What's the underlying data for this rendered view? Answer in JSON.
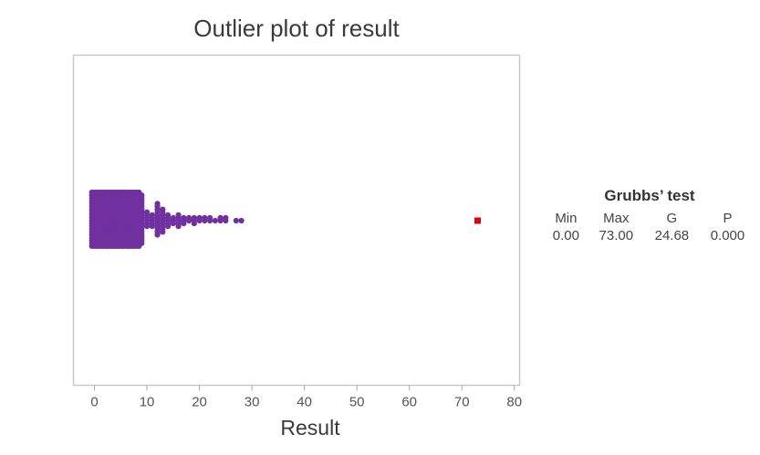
{
  "chart_data": {
    "type": "scatter",
    "subtype": "dot-plot (outlier plot)",
    "title": "Outlier plot of result",
    "xlabel": "Result",
    "ylabel": "",
    "xlim": [
      -4,
      81
    ],
    "x_ticks": [
      0,
      10,
      20,
      30,
      40,
      50,
      60,
      70,
      80
    ],
    "grid": false,
    "legend": "none",
    "colors": {
      "points": "#7030a0",
      "outlier": "#e0000b",
      "frame": "#c8c8c8",
      "axis_text": "#555555"
    },
    "points_distribution": [
      {
        "value": 0,
        "count": 60
      },
      {
        "value": 1,
        "count": 60
      },
      {
        "value": 2,
        "count": 60
      },
      {
        "value": 3,
        "count": 60
      },
      {
        "value": 4,
        "count": 60
      },
      {
        "value": 5,
        "count": 60
      },
      {
        "value": 6,
        "count": 60
      },
      {
        "value": 7,
        "count": 60
      },
      {
        "value": 8,
        "count": 60
      },
      {
        "value": 9,
        "count": 18
      },
      {
        "value": 10,
        "count": 6
      },
      {
        "value": 11,
        "count": 5
      },
      {
        "value": 12,
        "count": 12
      },
      {
        "value": 13,
        "count": 9
      },
      {
        "value": 14,
        "count": 5
      },
      {
        "value": 15,
        "count": 3
      },
      {
        "value": 16,
        "count": 5
      },
      {
        "value": 17,
        "count": 3
      },
      {
        "value": 18,
        "count": 2
      },
      {
        "value": 19,
        "count": 3
      },
      {
        "value": 20,
        "count": 2
      },
      {
        "value": 21,
        "count": 2
      },
      {
        "value": 22,
        "count": 2
      },
      {
        "value": 23,
        "count": 1
      },
      {
        "value": 24,
        "count": 2
      },
      {
        "value": 25,
        "count": 2
      },
      {
        "value": 27,
        "count": 1
      },
      {
        "value": 28,
        "count": 1
      }
    ],
    "outliers": [
      73
    ]
  },
  "grubbs_test": {
    "title": "Grubbs’ test",
    "headers": [
      "Min",
      "Max",
      "G",
      "P"
    ],
    "values": [
      "0.00",
      "73.00",
      "24.68",
      "0.000"
    ]
  }
}
